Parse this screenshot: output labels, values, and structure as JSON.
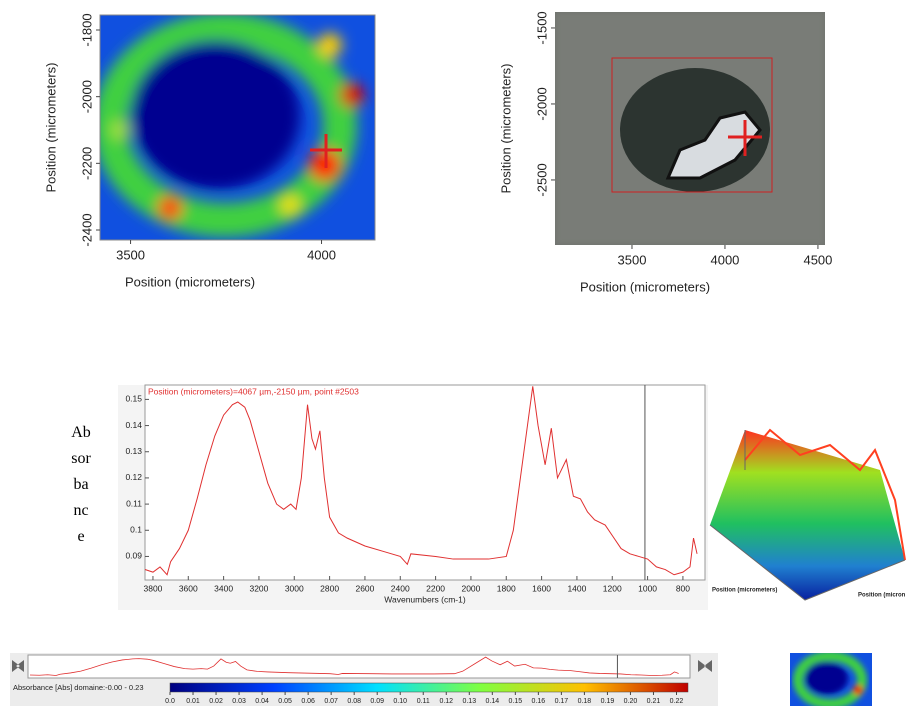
{
  "chart_data": [
    {
      "type": "heatmap",
      "xlabel": "Position (micrometers)",
      "ylabel": "Position (micrometers)",
      "xlim": [
        3420,
        4140
      ],
      "ylim": [
        -2430,
        -1755
      ],
      "xticks": [
        3500,
        4000
      ],
      "yticks": [
        -1800,
        -2000,
        -2200,
        -2400
      ]
    },
    {
      "type": "image",
      "xlabel": "Position (micrometers)",
      "ylabel": "Position (micrometers)",
      "xlim": [
        3086,
        4538
      ],
      "ylim": [
        -2928,
        -1395
      ],
      "xticks": [
        3500,
        4000,
        4500
      ],
      "yticks": [
        -1500,
        -2000,
        -2500
      ]
    },
    {
      "type": "line",
      "annotation": "Position (micrometers)=4067 µm,-2150 µm, point #2503",
      "xlabel": "Wavenumbers (cm-1)",
      "ylabel": "Absorbance",
      "color": "#e03030",
      "xlim": [
        3845,
        675
      ],
      "ylim": [
        0.081,
        0.1555
      ],
      "xticks": [
        3800,
        3600,
        3400,
        3200,
        3000,
        2800,
        2600,
        2400,
        2200,
        2000,
        1800,
        1600,
        1400,
        1200,
        1000,
        800
      ],
      "yticks": [
        0.09,
        0.1,
        0.11,
        0.12,
        0.13,
        0.14,
        0.15
      ],
      "cursor": 1015,
      "x": [
        3845,
        3800,
        3760,
        3720,
        3700,
        3650,
        3600,
        3550,
        3500,
        3450,
        3400,
        3350,
        3320,
        3280,
        3250,
        3200,
        3150,
        3100,
        3060,
        3020,
        2990,
        2960,
        2925,
        2900,
        2880,
        2855,
        2830,
        2800,
        2750,
        2700,
        2600,
        2500,
        2400,
        2360,
        2340,
        2200,
        2100,
        2000,
        1900,
        1800,
        1760,
        1700,
        1650,
        1620,
        1580,
        1545,
        1510,
        1460,
        1420,
        1380,
        1340,
        1300,
        1240,
        1200,
        1150,
        1100,
        1050,
        1000,
        950,
        900,
        850,
        800,
        760,
        740,
        720
      ],
      "values": [
        0.085,
        0.084,
        0.086,
        0.083,
        0.088,
        0.093,
        0.1,
        0.112,
        0.125,
        0.136,
        0.144,
        0.148,
        0.149,
        0.147,
        0.142,
        0.13,
        0.118,
        0.11,
        0.108,
        0.11,
        0.108,
        0.12,
        0.148,
        0.135,
        0.131,
        0.138,
        0.12,
        0.105,
        0.099,
        0.097,
        0.094,
        0.092,
        0.09,
        0.087,
        0.091,
        0.09,
        0.089,
        0.089,
        0.089,
        0.09,
        0.1,
        0.13,
        0.155,
        0.14,
        0.125,
        0.139,
        0.12,
        0.127,
        0.113,
        0.112,
        0.107,
        0.104,
        0.102,
        0.098,
        0.093,
        0.091,
        0.09,
        0.089,
        0.086,
        0.085,
        0.083,
        0.084,
        0.086,
        0.097,
        0.091
      ]
    },
    {
      "type": "surface",
      "xlabel": "Position (micrometers)",
      "ylabel": "Position (micron"
    },
    {
      "type": "colorbar",
      "label": "Absorbance [Abs] domaine:-0.00 - 0.23",
      "xlim": [
        0,
        0.225
      ],
      "xticks": [
        {
          "value": 0,
          "label": "0.0"
        },
        0.01,
        0.02,
        0.03,
        0.04,
        0.05,
        0.06,
        0.07,
        0.08,
        0.09,
        {
          "value": 0.1,
          "label": "0.10"
        },
        0.11,
        0.12,
        0.13,
        0.14,
        0.15,
        0.16,
        0.17,
        0.18,
        0.19,
        {
          "value": 0.2,
          "label": "0.20"
        },
        0.21,
        0.22
      ]
    }
  ]
}
